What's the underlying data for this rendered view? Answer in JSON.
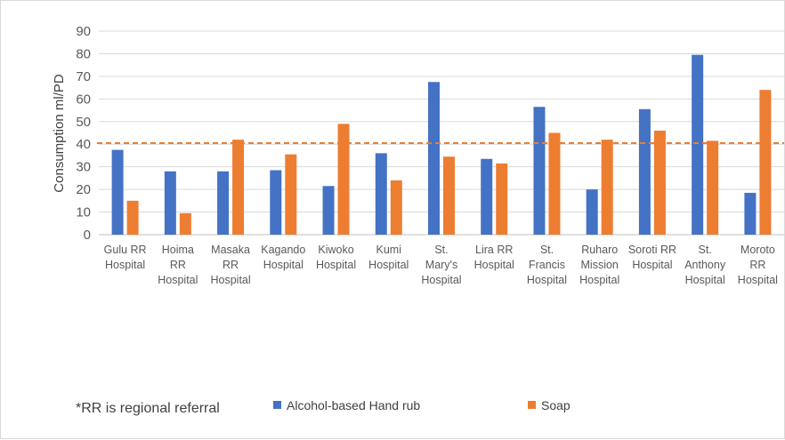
{
  "chart_data": {
    "type": "bar",
    "categories": [
      [
        "Gulu RR",
        "Hospital"
      ],
      [
        "Hoima",
        "RR",
        "Hospital"
      ],
      [
        "Masaka",
        "RR",
        "Hospital"
      ],
      [
        "Kagando",
        "Hospital"
      ],
      [
        "Kiwoko",
        "Hospital"
      ],
      [
        "Kumi",
        "Hospital"
      ],
      [
        "St.",
        "Mary's",
        "Hospital"
      ],
      [
        "Lira RR",
        "Hospital"
      ],
      [
        "St.",
        "Francis",
        "Hospital"
      ],
      [
        "Ruharo",
        "Mission",
        "Hospital"
      ],
      [
        "Soroti RR",
        "Hospital"
      ],
      [
        "St.",
        "Anthony",
        "Hospital"
      ],
      [
        "Moroto",
        "RR",
        "Hospital"
      ]
    ],
    "series": [
      {
        "name": "Alcohol-based Hand rub",
        "color": "#4472C4",
        "values": [
          37.5,
          28,
          28,
          28.5,
          21.5,
          36,
          67.5,
          33.5,
          56.5,
          20,
          55.5,
          79.5,
          18.5
        ]
      },
      {
        "name": "Soap",
        "color": "#ED7D31",
        "values": [
          15,
          9.5,
          42,
          35.5,
          49,
          24,
          34.5,
          31.5,
          45,
          42,
          46,
          41.5,
          64
        ]
      }
    ],
    "ylabel": "Consumption ml/PD",
    "ylim": [
      0,
      90
    ],
    "yticks": [
      0,
      10,
      20,
      30,
      40,
      50,
      60,
      70,
      80,
      90
    ],
    "reference_line": {
      "value": 40.5,
      "color": "#ED7D31",
      "style": "dashed"
    },
    "grid": true,
    "legend": "bottom",
    "footnote": "*RR is regional referral"
  }
}
